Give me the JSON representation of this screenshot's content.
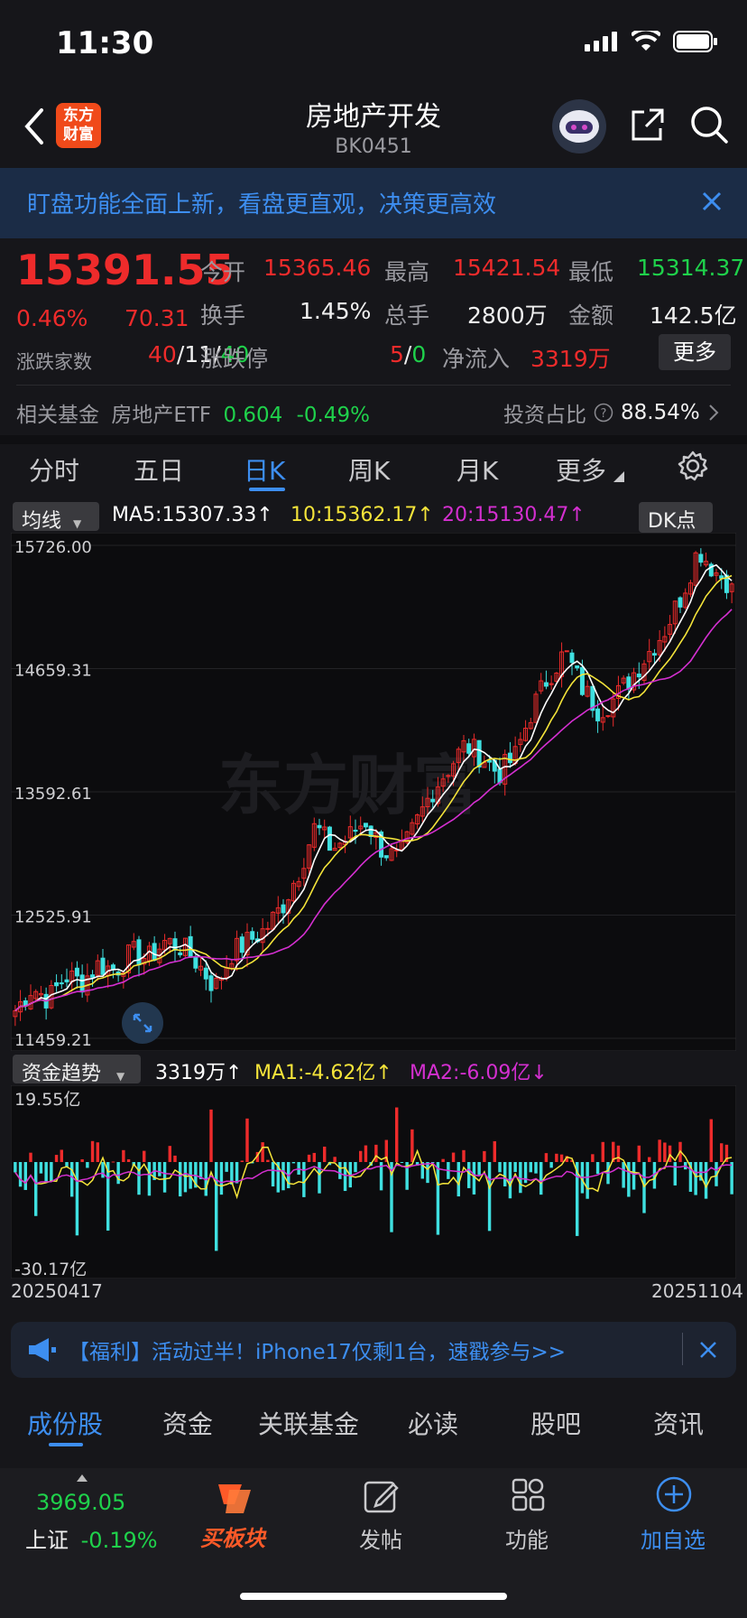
{
  "status": {
    "time": "11:30"
  },
  "header": {
    "logo_line1": "东方",
    "logo_line2": "财富",
    "title": "房地产开发",
    "code": "BK0451"
  },
  "banner": {
    "text": "盯盘功能全面上新，看盘更直观，决策更高效"
  },
  "quote": {
    "price": "15391.55",
    "change_pct": "0.46%",
    "change_abs": "70.31",
    "labels": {
      "open": "今开",
      "high": "最高",
      "low": "最低",
      "turnover": "换手",
      "volume": "总手",
      "amount": "金额",
      "updown": "涨跌家数",
      "limit": "涨跌停",
      "inflow": "净流入",
      "more": "更多"
    },
    "open": "15365.46",
    "high": "15421.54",
    "low": "15314.37",
    "turnover": "1.45%",
    "volume": "2800万",
    "amount": "142.5亿",
    "up_count": "40",
    "flat_count": "11",
    "down_count": "40",
    "limit_up": "5",
    "limit_down": "0",
    "inflow": "3319万"
  },
  "fund": {
    "label": "相关基金",
    "name": "房地产ETF",
    "price": "0.604",
    "change": "-0.49%",
    "ratio_label": "投资占比",
    "ratio": "88.54%"
  },
  "ktabs": [
    "分时",
    "五日",
    "日K",
    "周K",
    "月K",
    "更多"
  ],
  "ma_bar": {
    "selector": "均线",
    "ma5": "MA5:15307.33",
    "ma10": "10:15362.17",
    "ma20": "20:15130.47",
    "dk": "DK点"
  },
  "watermark": "东方财富",
  "fund_bar": {
    "selector": "资金趋势",
    "value": "3319万",
    "ma1": "MA1:-4.62亿",
    "ma2": "MA2:-6.09亿"
  },
  "dates": {
    "start": "20250417",
    "end": "20251104"
  },
  "notice": {
    "text": "【福利】活动过半！iPhone17仅剩1台，速戳参与>>"
  },
  "bottom_tabs": [
    "成份股",
    "资金",
    "关联基金",
    "必读",
    "股吧",
    "资讯"
  ],
  "nav": {
    "index_value": "3969.05",
    "index_name": "上证",
    "index_change": "-0.19%",
    "buy": "买板块",
    "post": "发帖",
    "func": "功能",
    "add": "加自选"
  },
  "colors": {
    "up": "#ee2b2b",
    "down": "#1fd14b",
    "accent": "#3d8ef0",
    "candle_down": "#3fe0e0",
    "ma5": "#ffffff",
    "ma10": "#f4e43a",
    "ma20": "#d42fd0"
  },
  "chart_data": [
    {
      "type": "candlestick",
      "title": "",
      "ylim": [
        11459.21,
        15726.0
      ],
      "y_ticks": [
        "15726.00",
        "14659.31",
        "13592.61",
        "12525.91",
        "11459.21"
      ],
      "x_range": [
        "20250417",
        "20251104"
      ],
      "series": [
        {
          "name": "MA5",
          "last": 15307.33
        },
        {
          "name": "MA10",
          "last": 15362.17
        },
        {
          "name": "MA20",
          "last": 15130.47
        }
      ],
      "close_path": [
        11700,
        11900,
        11800,
        12000,
        11950,
        12100,
        12050,
        12200,
        12150,
        12300,
        12250,
        12100,
        11900,
        12200,
        12300,
        12400,
        12600,
        12900,
        13300,
        13100,
        13200,
        13350,
        13100,
        13000,
        13300,
        13600,
        13800,
        14000,
        13900,
        13750,
        13900,
        14300,
        14600,
        14800,
        14500,
        14300,
        14400,
        14600,
        14800,
        15000,
        15300,
        15700,
        15500,
        15391.55
      ]
    },
    {
      "type": "bar",
      "title": "",
      "ylim": [
        -30.17,
        19.55
      ],
      "y_ticks": [
        "19.55亿",
        "-30.17亿"
      ],
      "x_range": [
        "20250417",
        "20251104"
      ],
      "unit": "亿",
      "series": [
        {
          "name": "MA1",
          "last": -4.62
        },
        {
          "name": "MA2",
          "last": -6.09
        }
      ]
    }
  ]
}
